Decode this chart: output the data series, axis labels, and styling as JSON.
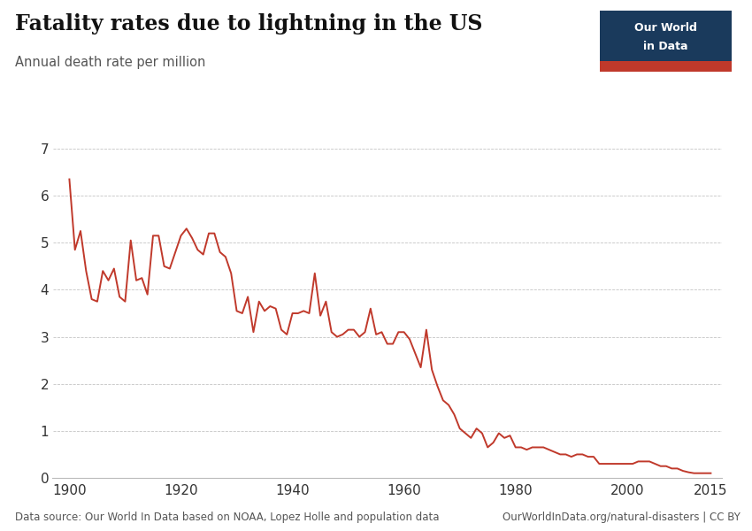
{
  "title": "Fatality rates due to lightning in the US",
  "subtitle": "Annual death rate per million",
  "line_color": "#C0392B",
  "bg_color": "#FFFFFF",
  "plot_bg_color": "#FFFFFF",
  "grid_color": "#AAAAAA",
  "ylim": [
    0,
    7
  ],
  "yticks": [
    0,
    1,
    2,
    3,
    4,
    5,
    6,
    7
  ],
  "xlim": [
    1897,
    2017
  ],
  "xticks": [
    1900,
    1920,
    1940,
    1960,
    1980,
    2000,
    2015
  ],
  "source_text": "Data source: Our World In Data based on NOAA, Lopez Holle and population data",
  "source_right": "OurWorldInData.org/natural-disasters | CC BY",
  "owid_box_color": "#1A3A5C",
  "owid_red": "#C0392B",
  "years": [
    1900,
    1901,
    1902,
    1903,
    1904,
    1905,
    1906,
    1907,
    1908,
    1909,
    1910,
    1911,
    1912,
    1913,
    1914,
    1915,
    1916,
    1917,
    1918,
    1919,
    1920,
    1921,
    1922,
    1923,
    1924,
    1925,
    1926,
    1927,
    1928,
    1929,
    1930,
    1931,
    1932,
    1933,
    1934,
    1935,
    1936,
    1937,
    1938,
    1939,
    1940,
    1941,
    1942,
    1943,
    1944,
    1945,
    1946,
    1947,
    1948,
    1949,
    1950,
    1951,
    1952,
    1953,
    1954,
    1955,
    1956,
    1957,
    1958,
    1959,
    1960,
    1961,
    1962,
    1963,
    1964,
    1965,
    1966,
    1967,
    1968,
    1969,
    1970,
    1971,
    1972,
    1973,
    1974,
    1975,
    1976,
    1977,
    1978,
    1979,
    1980,
    1981,
    1982,
    1983,
    1984,
    1985,
    1986,
    1987,
    1988,
    1989,
    1990,
    1991,
    1992,
    1993,
    1994,
    1995,
    1996,
    1997,
    1998,
    1999,
    2000,
    2001,
    2002,
    2003,
    2004,
    2005,
    2006,
    2007,
    2008,
    2009,
    2010,
    2011,
    2012,
    2013,
    2014,
    2015
  ],
  "values": [
    6.35,
    4.85,
    5.25,
    4.4,
    3.8,
    3.75,
    4.4,
    4.2,
    4.45,
    3.85,
    3.75,
    5.05,
    4.2,
    4.25,
    3.9,
    5.15,
    5.15,
    4.5,
    4.45,
    4.8,
    5.15,
    5.3,
    5.1,
    4.85,
    4.75,
    5.2,
    5.2,
    4.8,
    4.7,
    4.35,
    3.55,
    3.5,
    3.85,
    3.1,
    3.75,
    3.55,
    3.65,
    3.6,
    3.15,
    3.05,
    3.5,
    3.5,
    3.55,
    3.5,
    4.35,
    3.45,
    3.75,
    3.1,
    3.0,
    3.05,
    3.15,
    3.15,
    3.0,
    3.1,
    3.6,
    3.05,
    3.1,
    2.85,
    2.85,
    3.1,
    3.1,
    2.95,
    2.65,
    2.35,
    3.15,
    2.3,
    1.95,
    1.65,
    1.55,
    1.35,
    1.05,
    0.95,
    0.85,
    1.05,
    0.95,
    0.65,
    0.75,
    0.95,
    0.85,
    0.9,
    0.65,
    0.65,
    0.6,
    0.65,
    0.65,
    0.65,
    0.6,
    0.55,
    0.5,
    0.5,
    0.45,
    0.5,
    0.5,
    0.45,
    0.45,
    0.3,
    0.3,
    0.3,
    0.3,
    0.3,
    0.3,
    0.3,
    0.35,
    0.35,
    0.35,
    0.3,
    0.25,
    0.25,
    0.2,
    0.2,
    0.15,
    0.12,
    0.1,
    0.1,
    0.1,
    0.1
  ]
}
